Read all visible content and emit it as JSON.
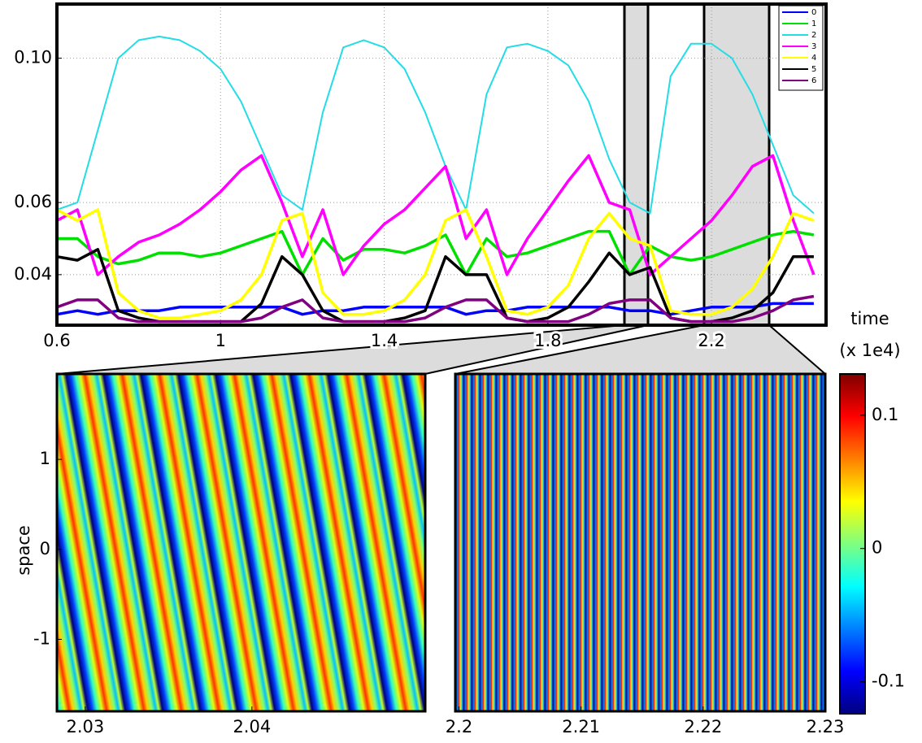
{
  "chart_data": [
    {
      "type": "line",
      "xlabel": "time",
      "xlabel_unit": "(x 1e4)",
      "x": [
        0.6,
        0.65,
        0.7,
        0.75,
        0.8,
        0.85,
        0.9,
        0.95,
        1.0,
        1.05,
        1.1,
        1.15,
        1.2,
        1.25,
        1.3,
        1.35,
        1.4,
        1.45,
        1.5,
        1.55,
        1.6,
        1.65,
        1.7,
        1.75,
        1.8,
        1.85,
        1.9,
        1.95,
        2.0,
        2.05,
        2.1,
        2.15,
        2.2,
        2.25,
        2.3,
        2.35,
        2.4,
        2.45
      ],
      "series": [
        {
          "name": "0",
          "color": "#0000ff",
          "values": [
            0.029,
            0.03,
            0.029,
            0.03,
            0.03,
            0.03,
            0.031,
            0.031,
            0.031,
            0.031,
            0.031,
            0.031,
            0.029,
            0.03,
            0.03,
            0.031,
            0.031,
            0.031,
            0.031,
            0.031,
            0.029,
            0.03,
            0.03,
            0.031,
            0.031,
            0.031,
            0.031,
            0.031,
            0.03,
            0.03,
            0.029,
            0.03,
            0.031,
            0.031,
            0.031,
            0.032,
            0.032,
            0.032
          ]
        },
        {
          "name": "1",
          "color": "#00e000",
          "values": [
            0.05,
            0.05,
            0.045,
            0.043,
            0.044,
            0.046,
            0.046,
            0.045,
            0.046,
            0.048,
            0.05,
            0.052,
            0.04,
            0.05,
            0.044,
            0.047,
            0.047,
            0.046,
            0.048,
            0.051,
            0.04,
            0.05,
            0.045,
            0.046,
            0.048,
            0.05,
            0.052,
            0.052,
            0.04,
            0.048,
            0.045,
            0.044,
            0.045,
            0.047,
            0.049,
            0.051,
            0.052,
            0.051
          ]
        },
        {
          "name": "2",
          "color": "#22dde6",
          "values": [
            0.058,
            0.06,
            0.08,
            0.1,
            0.105,
            0.106,
            0.105,
            0.102,
            0.097,
            0.088,
            0.075,
            0.062,
            0.058,
            0.085,
            0.103,
            0.105,
            0.103,
            0.097,
            0.085,
            0.07,
            0.058,
            0.09,
            0.103,
            0.104,
            0.102,
            0.098,
            0.088,
            0.072,
            0.06,
            0.057,
            0.095,
            0.104,
            0.104,
            0.1,
            0.09,
            0.076,
            0.062,
            0.057
          ]
        },
        {
          "name": "3",
          "color": "#ff00ff",
          "values": [
            0.055,
            0.058,
            0.04,
            0.045,
            0.049,
            0.051,
            0.054,
            0.058,
            0.063,
            0.069,
            0.073,
            0.06,
            0.045,
            0.058,
            0.04,
            0.048,
            0.054,
            0.058,
            0.064,
            0.07,
            0.05,
            0.058,
            0.04,
            0.05,
            0.058,
            0.066,
            0.073,
            0.06,
            0.058,
            0.04,
            0.045,
            0.05,
            0.055,
            0.062,
            0.07,
            0.073,
            0.055,
            0.04
          ]
        },
        {
          "name": "4",
          "color": "#ffff00",
          "values": [
            0.058,
            0.055,
            0.058,
            0.035,
            0.03,
            0.028,
            0.028,
            0.029,
            0.03,
            0.033,
            0.04,
            0.055,
            0.057,
            0.035,
            0.029,
            0.029,
            0.03,
            0.033,
            0.04,
            0.055,
            0.058,
            0.045,
            0.03,
            0.029,
            0.031,
            0.037,
            0.05,
            0.057,
            0.05,
            0.048,
            0.03,
            0.029,
            0.029,
            0.031,
            0.036,
            0.045,
            0.057,
            0.055
          ]
        },
        {
          "name": "5",
          "color": "#000000",
          "values": [
            0.045,
            0.044,
            0.047,
            0.03,
            0.028,
            0.027,
            0.027,
            0.027,
            0.027,
            0.027,
            0.032,
            0.045,
            0.04,
            0.03,
            0.027,
            0.027,
            0.027,
            0.028,
            0.03,
            0.045,
            0.04,
            0.04,
            0.028,
            0.027,
            0.028,
            0.031,
            0.038,
            0.046,
            0.04,
            0.042,
            0.028,
            0.027,
            0.027,
            0.028,
            0.03,
            0.035,
            0.045,
            0.045
          ]
        },
        {
          "name": "6",
          "color": "#800080",
          "values": [
            0.031,
            0.033,
            0.033,
            0.028,
            0.027,
            0.027,
            0.027,
            0.027,
            0.027,
            0.027,
            0.028,
            0.031,
            0.033,
            0.028,
            0.027,
            0.027,
            0.027,
            0.027,
            0.028,
            0.031,
            0.033,
            0.033,
            0.028,
            0.027,
            0.027,
            0.027,
            0.029,
            0.032,
            0.033,
            0.033,
            0.028,
            0.027,
            0.027,
            0.027,
            0.028,
            0.03,
            0.033,
            0.034
          ]
        }
      ],
      "xlim": [
        0.6,
        2.48
      ],
      "xticks": [
        0.6,
        1,
        1.4,
        1.8,
        2.2
      ],
      "ylim": [
        0.026,
        0.115
      ],
      "yticks": [
        {
          "value": 0.1,
          "label": "0.10"
        },
        0.06,
        0.04
      ],
      "grid": true,
      "legend": "upper right"
    },
    {
      "type": "heatmap",
      "ylabel": "space",
      "xlim": [
        2.0283,
        2.0504
      ],
      "xticks": [
        2.03,
        2.04
      ],
      "ylim": [
        -1.8,
        1.95
      ],
      "yticks": [
        1,
        0,
        -1
      ],
      "colormap": "jet"
    },
    {
      "type": "heatmap",
      "xlim": [
        2.1997,
        2.23
      ],
      "xticks": [
        2.2,
        2.21,
        2.22,
        2.23
      ],
      "colormap": "jet"
    },
    {
      "type": "colorbar",
      "clim": [
        -0.124,
        0.131
      ],
      "cticks": [
        0.1,
        0,
        -0.1
      ],
      "colormap": "jet"
    }
  ]
}
